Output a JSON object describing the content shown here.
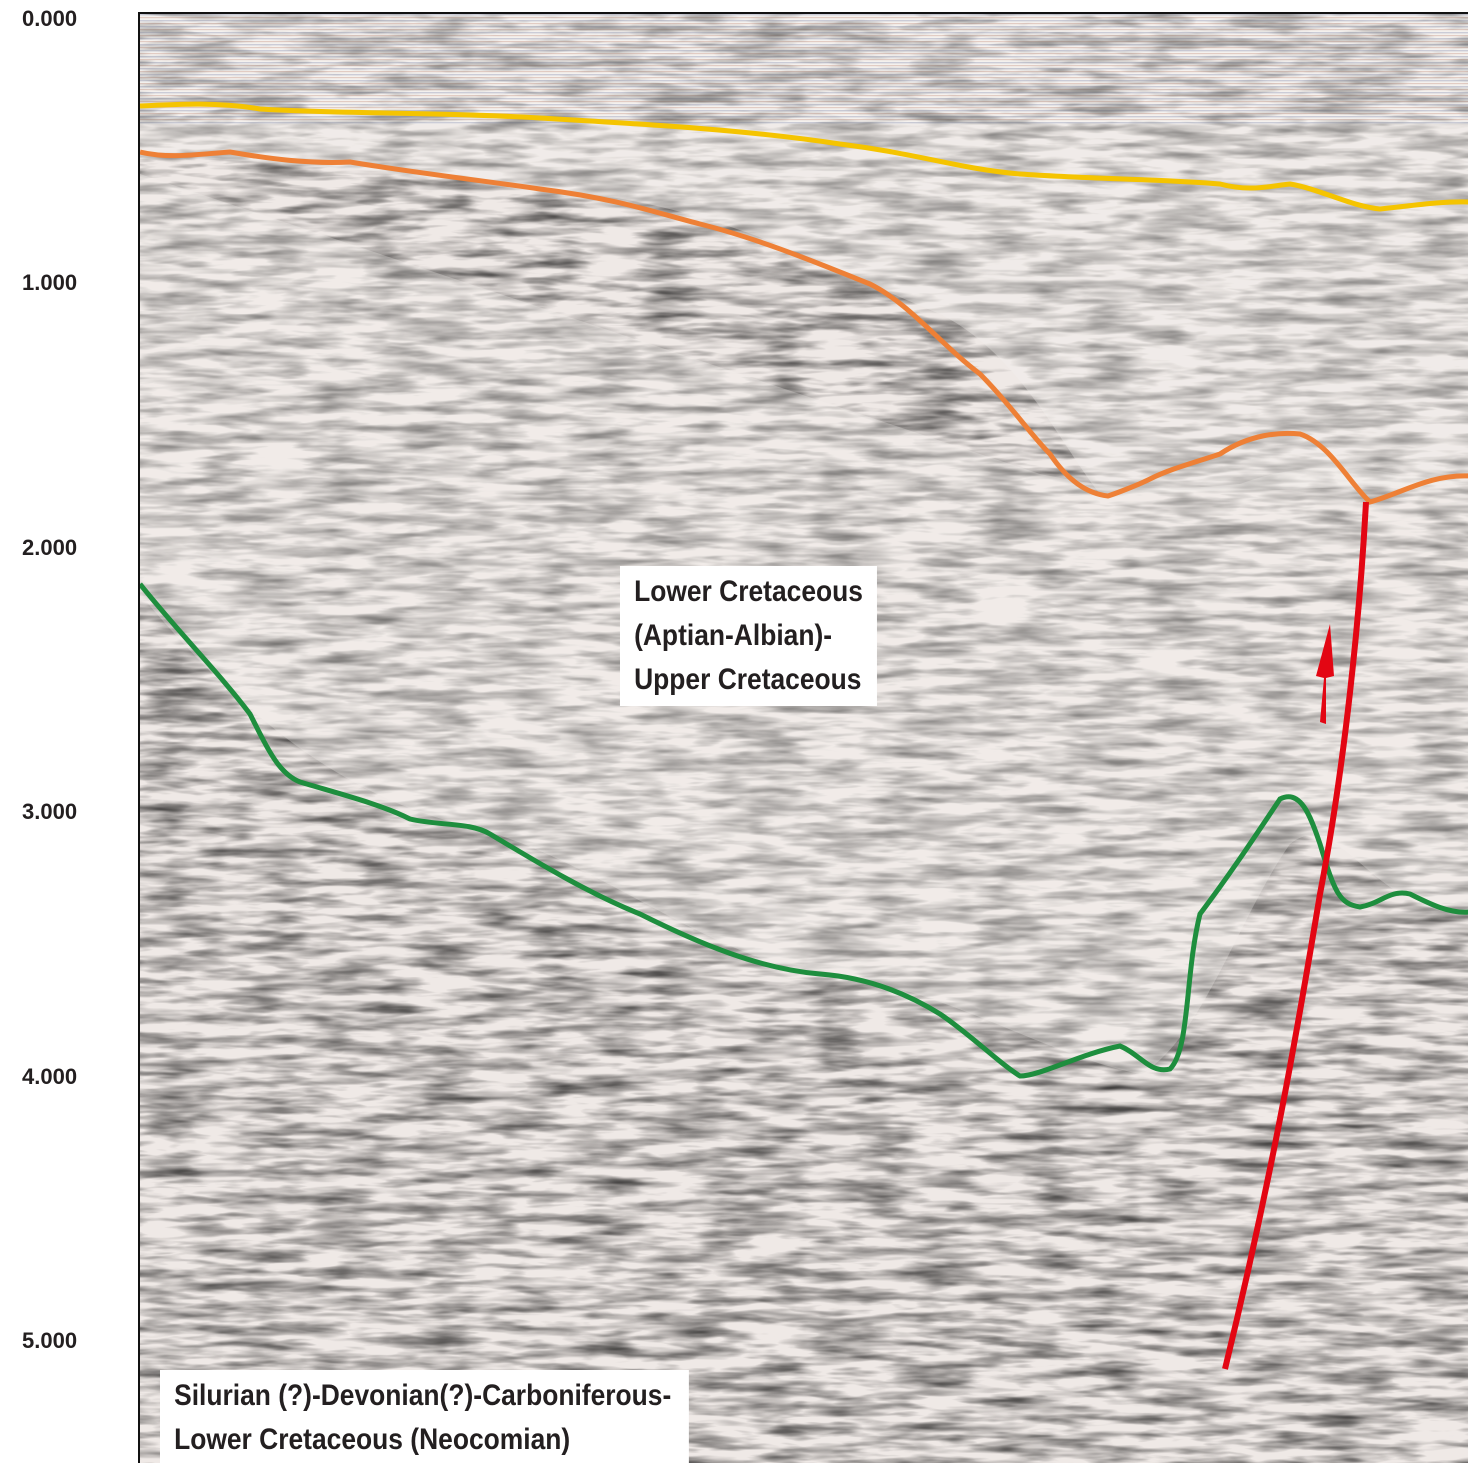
{
  "axis": {
    "ticks": [
      "0.000",
      "1.000",
      "2.000",
      "3.000",
      "4.000",
      "5.000"
    ]
  },
  "labels": {
    "upper_unit": [
      "Lower Cretaceous",
      "(Aptian-Albian)-",
      "Upper Cretaceous"
    ],
    "lower_unit": [
      "Silurian (?)-Devonian(?)-Carboniferous-",
      "Lower Cretaceous (Neocomian)"
    ]
  },
  "horizons": [
    {
      "id": "yellow-horizon",
      "color": "#f5c400"
    },
    {
      "id": "orange-horizon",
      "color": "#ee8036"
    },
    {
      "id": "green-horizon",
      "color": "#1e8e3e"
    }
  ],
  "fault": {
    "color": "#e30613"
  },
  "seismic_colors": {
    "positive": "#1c2f6e",
    "negative": "#b5401c"
  }
}
